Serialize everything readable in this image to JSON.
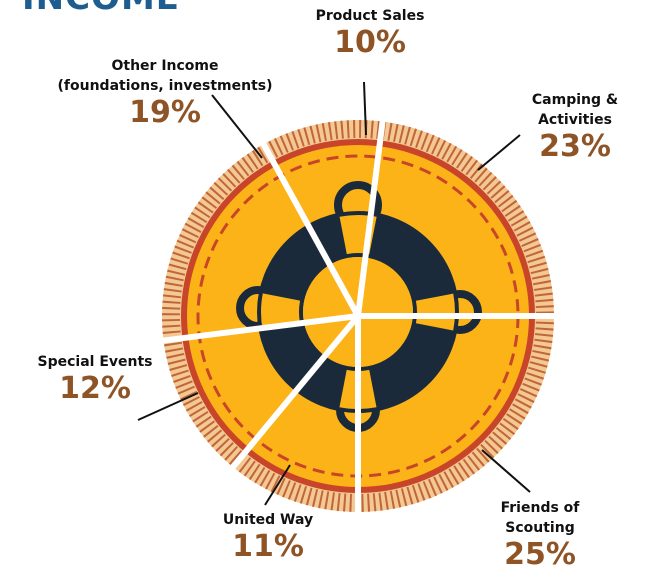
{
  "chart_data": {
    "type": "pie",
    "title": "INCOME",
    "categories": [
      "Friends of Scouting",
      "United Way",
      "Special Events",
      "Other Income\n(foundations, investments)",
      "Product Sales",
      "Camping & Activities"
    ],
    "values": [
      25,
      11,
      12,
      19,
      10,
      23
    ],
    "value_labels": [
      "25%",
      "11%",
      "12%",
      "19%",
      "10%",
      "23%"
    ],
    "color": "#fbb317"
  }
}
